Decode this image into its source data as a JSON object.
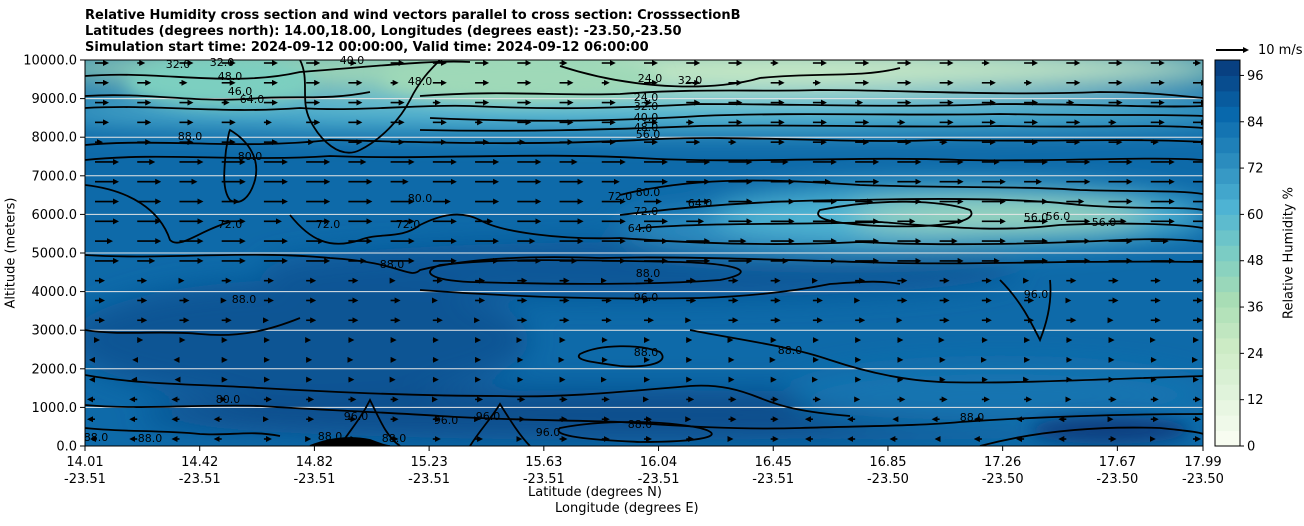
{
  "chart_data": {
    "type": "contour",
    "title_lines": [
      "Relative Humidity cross section and wind vectors parallel to cross section: CrosssectionB",
      "Latitudes (degrees north): 14.00,18.00, Longitudes (degrees east): -23.50,-23.50",
      "Simulation start time: 2024-09-12 00:00:00, Valid time: 2024-09-12 06:00:00"
    ],
    "ylabel": "Altitude (meters)",
    "xlabel_lines": [
      "Latitude (degrees N)",
      "Longitude (degrees E)"
    ],
    "ylim": [
      0,
      10000
    ],
    "yticks": [
      "0.0",
      "1000.0",
      "2000.0",
      "3000.0",
      "4000.0",
      "5000.0",
      "6000.0",
      "7000.0",
      "8000.0",
      "9000.0",
      "10000.0"
    ],
    "ytick_values": [
      0,
      1000,
      2000,
      3000,
      4000,
      5000,
      6000,
      7000,
      8000,
      9000,
      10000
    ],
    "xticks": [
      {
        "lat": "14.01",
        "lon": "-23.51"
      },
      {
        "lat": "14.42",
        "lon": "-23.51"
      },
      {
        "lat": "14.82",
        "lon": "-23.51"
      },
      {
        "lat": "15.23",
        "lon": "-23.51"
      },
      {
        "lat": "15.63",
        "lon": "-23.51"
      },
      {
        "lat": "16.04",
        "lon": "-23.51"
      },
      {
        "lat": "16.45",
        "lon": "-23.51"
      },
      {
        "lat": "16.85",
        "lon": "-23.50"
      },
      {
        "lat": "17.26",
        "lon": "-23.50"
      },
      {
        "lat": "17.67",
        "lon": "-23.50"
      },
      {
        "lat": "17.99",
        "lon": "-23.50"
      }
    ],
    "colorbar": {
      "label": "Relative Humidity %",
      "range": [
        0,
        100
      ],
      "ticks": [
        "0",
        "12",
        "24",
        "36",
        "48",
        "60",
        "72",
        "84",
        "96"
      ],
      "tick_values": [
        0,
        12,
        24,
        36,
        48,
        60,
        72,
        84,
        96
      ],
      "levels": 25,
      "colors": [
        "#f7fcf0",
        "#e0f3db",
        "#ccebc5",
        "#a8ddb5",
        "#7bccc4",
        "#4eb3d3",
        "#2b8cbe",
        "#0868ac",
        "#084081"
      ]
    },
    "grid": "horizontal",
    "wind_reference": "10 m/s",
    "contour_labels": [
      "32.0",
      "32.0",
      "40.0",
      "48.0",
      "46.0",
      "64.0",
      "24.0",
      "32.0",
      "24.0",
      "32.0",
      "40.0",
      "48.0",
      "56.0",
      "48.0",
      "80.0",
      "88.0",
      "72.0",
      "72.0",
      "72.0",
      "80.0",
      "72.0",
      "80.0",
      "72.0",
      "64.0",
      "64.0",
      "56.0",
      "56.0",
      "56.0",
      "88.0",
      "88.0",
      "96.0",
      "88.0",
      "96.0",
      "88.0",
      "88.0",
      "80.0",
      "88.0",
      "88.0",
      "88.0",
      "88.0",
      "96.0",
      "88.0",
      "96.0",
      "96.0",
      "96.0",
      "88.0"
    ]
  }
}
